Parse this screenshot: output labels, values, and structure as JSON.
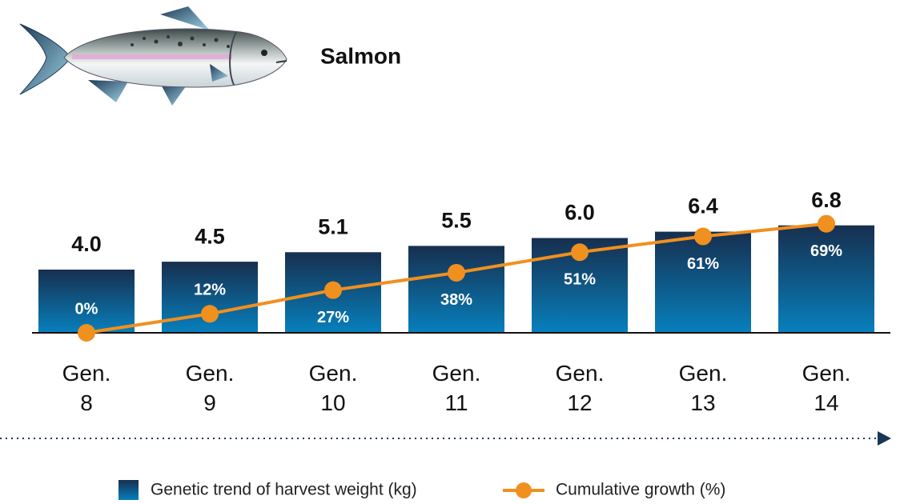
{
  "chart_data": {
    "type": "bar_line",
    "title": "Salmon",
    "categories": [
      "Gen. 8",
      "Gen. 9",
      "Gen. 10",
      "Gen. 11",
      "Gen. 12",
      "Gen. 13",
      "Gen. 14"
    ],
    "ylim": [
      0,
      10
    ],
    "y2lim": [
      0,
      100
    ],
    "series": [
      {
        "name": "Genetic trend of harvest weight (kg)",
        "type": "bar",
        "color": "#172f4f",
        "values": [
          4.0,
          4.5,
          5.1,
          5.5,
          6.0,
          6.4,
          6.8
        ],
        "value_labels": [
          "4.0",
          "4.5",
          "5.1",
          "5.5",
          "6.0",
          "6.4",
          "6.8"
        ]
      },
      {
        "name": "Cumulative growth (%)",
        "type": "line",
        "axis": "y2",
        "color": "#f0901e",
        "values": [
          0,
          12,
          27,
          38,
          51,
          61,
          69
        ],
        "value_labels": [
          "0%",
          "12%",
          "27%",
          "38%",
          "51%",
          "61%",
          "69%"
        ]
      }
    ]
  }
}
